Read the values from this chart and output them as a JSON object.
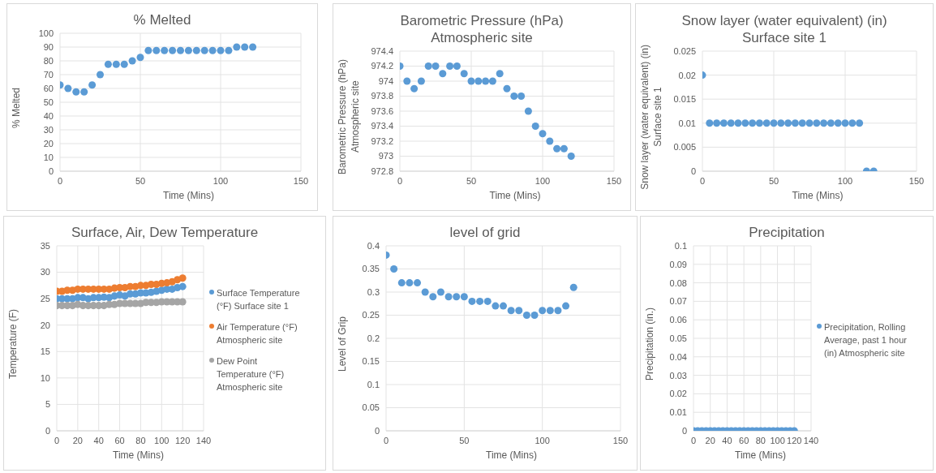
{
  "chart_data": [
    {
      "type": "scatter",
      "title": "% Melted",
      "xlabel": "Time (Mins)",
      "ylabel": "% Melted",
      "x": [
        0,
        5,
        10,
        15,
        20,
        25,
        30,
        35,
        40,
        45,
        50,
        55,
        60,
        65,
        70,
        75,
        80,
        85,
        90,
        95,
        100,
        105,
        110,
        115,
        120
      ],
      "series": [
        {
          "color": "#5b9bd5",
          "values": [
            62.5,
            60,
            57.5,
            57.5,
            62.5,
            70,
            77.5,
            77.5,
            77.5,
            80,
            82.5,
            87.5,
            87.5,
            87.5,
            87.5,
            87.5,
            87.5,
            87.5,
            87.5,
            87.5,
            87.5,
            87.5,
            90,
            90,
            90
          ]
        }
      ],
      "xlim": [
        0,
        150
      ],
      "xticks": [
        0,
        50,
        100,
        150
      ],
      "ylim": [
        0,
        100
      ],
      "yticks": [
        0,
        10,
        20,
        30,
        40,
        50,
        60,
        70,
        80,
        90,
        100
      ],
      "grid": true,
      "marker": "circle",
      "legend": false
    },
    {
      "type": "scatter",
      "title": "Barometric Pressure (hPa)\nAtmospheric site",
      "xlabel": "Time (Mins)",
      "ylabel": "Barometric Pressure (hPa)\nAtmospheric site",
      "x": [
        0,
        5,
        10,
        15,
        20,
        25,
        30,
        35,
        40,
        45,
        50,
        55,
        60,
        65,
        70,
        75,
        80,
        85,
        90,
        95,
        100,
        105,
        110,
        115,
        120
      ],
      "series": [
        {
          "color": "#5b9bd5",
          "values": [
            974.2,
            974,
            973.9,
            974,
            974.2,
            974.2,
            974.1,
            974.2,
            974.2,
            974.1,
            974,
            974,
            974,
            974,
            974.1,
            973.9,
            973.8,
            973.8,
            973.6,
            973.4,
            973.3,
            973.2,
            973.1,
            973.1,
            973
          ]
        }
      ],
      "xlim": [
        0,
        150
      ],
      "xticks": [
        0,
        50,
        100,
        150
      ],
      "ylim": [
        972.8,
        974.4
      ],
      "yticks": [
        972.8,
        973,
        973.2,
        973.4,
        973.6,
        973.8,
        974,
        974.2,
        974.4
      ],
      "grid": true,
      "marker": "circle",
      "legend": false
    },
    {
      "type": "scatter",
      "title": "Snow layer (water equivalent) (in)\nSurface site 1",
      "xlabel": "Time (Mins)",
      "ylabel": "Snow layer (water equivalent) (in)\nSurface site 1",
      "x": [
        0,
        5,
        10,
        15,
        20,
        25,
        30,
        35,
        40,
        45,
        50,
        55,
        60,
        65,
        70,
        75,
        80,
        85,
        90,
        95,
        100,
        105,
        110,
        115,
        120
      ],
      "series": [
        {
          "color": "#5b9bd5",
          "values": [
            0.02,
            0.01,
            0.01,
            0.01,
            0.01,
            0.01,
            0.01,
            0.01,
            0.01,
            0.01,
            0.01,
            0.01,
            0.01,
            0.01,
            0.01,
            0.01,
            0.01,
            0.01,
            0.01,
            0.01,
            0.01,
            0.01,
            0.01,
            0,
            0
          ]
        }
      ],
      "xlim": [
        0,
        150
      ],
      "xticks": [
        0,
        50,
        100,
        150
      ],
      "ylim": [
        0,
        0.025
      ],
      "yticks": [
        0,
        0.005,
        0.01,
        0.015,
        0.02,
        0.025
      ],
      "grid": true,
      "marker": "circle",
      "legend": false
    },
    {
      "type": "scatter",
      "title": "Surface, Air, Dew Temperature",
      "xlabel": "Time (Mins)",
      "ylabel": "Temperature (F)",
      "x": [
        0,
        5,
        10,
        15,
        20,
        25,
        30,
        35,
        40,
        45,
        50,
        55,
        60,
        65,
        70,
        75,
        80,
        85,
        90,
        95,
        100,
        105,
        110,
        115,
        120
      ],
      "series": [
        {
          "name": "Surface Temperature (°F) Surface site 1",
          "color": "#5b9bd5",
          "values": [
            25,
            25,
            25,
            25,
            25.2,
            25.2,
            25,
            25.2,
            25.2,
            25.3,
            25.2,
            25.5,
            25.7,
            25.5,
            25.9,
            25.9,
            26.1,
            26.1,
            26.2,
            26.4,
            26.6,
            26.8,
            26.8,
            27.1,
            27.3
          ]
        },
        {
          "name": "Air Temperature (°F) Atmospheric site",
          "color": "#ed7d31",
          "values": [
            26.4,
            26.4,
            26.6,
            26.6,
            26.8,
            26.8,
            26.8,
            26.8,
            26.8,
            26.8,
            26.8,
            27,
            27.1,
            27.1,
            27.3,
            27.3,
            27.5,
            27.5,
            27.7,
            27.7,
            27.9,
            28,
            28.2,
            28.6,
            28.9
          ]
        },
        {
          "name": "Dew Point Temperature (°F) Atmospheric site",
          "color": "#a5a5a5",
          "values": [
            23.7,
            23.7,
            23.7,
            23.7,
            23.9,
            23.7,
            23.7,
            23.7,
            23.7,
            23.7,
            23.9,
            23.9,
            24.1,
            24.1,
            24.1,
            24.1,
            24.1,
            24.3,
            24.3,
            24.3,
            24.4,
            24.4,
            24.4,
            24.4,
            24.4
          ]
        }
      ],
      "xlim": [
        0,
        140
      ],
      "xticks": [
        0,
        20,
        40,
        60,
        80,
        100,
        120,
        140
      ],
      "ylim": [
        0,
        35
      ],
      "yticks": [
        0,
        5,
        10,
        15,
        20,
        25,
        30,
        35
      ],
      "grid": true,
      "marker": "circle",
      "legend": "right"
    },
    {
      "type": "scatter",
      "title": "level of grid",
      "xlabel": "Time (Mins)",
      "ylabel": "Level of Grip",
      "x": [
        0,
        5,
        10,
        15,
        20,
        25,
        30,
        35,
        40,
        45,
        50,
        55,
        60,
        65,
        70,
        75,
        80,
        85,
        90,
        95,
        100,
        105,
        110,
        115,
        120
      ],
      "series": [
        {
          "color": "#5b9bd5",
          "values": [
            0.38,
            0.35,
            0.32,
            0.32,
            0.32,
            0.3,
            0.29,
            0.3,
            0.29,
            0.29,
            0.29,
            0.28,
            0.28,
            0.28,
            0.27,
            0.27,
            0.26,
            0.26,
            0.25,
            0.25,
            0.26,
            0.26,
            0.26,
            0.27,
            0.31
          ]
        }
      ],
      "xlim": [
        0,
        150
      ],
      "xticks": [
        0,
        50,
        100,
        150
      ],
      "ylim": [
        0,
        0.4
      ],
      "yticks": [
        0,
        0.05,
        0.1,
        0.15,
        0.2,
        0.25,
        0.3,
        0.35,
        0.4
      ],
      "grid": true,
      "marker": "circle",
      "legend": false
    },
    {
      "type": "scatter",
      "title": "Precipitation",
      "xlabel": "Time (Mins)",
      "ylabel": "Precipitation (in.)",
      "x": [
        0,
        5,
        10,
        15,
        20,
        25,
        30,
        35,
        40,
        45,
        50,
        55,
        60,
        65,
        70,
        75,
        80,
        85,
        90,
        95,
        100,
        105,
        110,
        115,
        120
      ],
      "series": [
        {
          "name": "Precipitation, Rolling Average, past 1 hour (in) Atmospheric site",
          "color": "#5b9bd5",
          "values": [
            0,
            0,
            0,
            0,
            0,
            0,
            0,
            0,
            0,
            0,
            0,
            0,
            0,
            0,
            0,
            0,
            0,
            0,
            0,
            0,
            0,
            0,
            0,
            0,
            0
          ]
        }
      ],
      "xlim": [
        0,
        140
      ],
      "xticks": [
        0,
        20,
        40,
        60,
        80,
        100,
        120,
        140
      ],
      "ylim": [
        0,
        0.1
      ],
      "yticks": [
        0,
        0.01,
        0.02,
        0.03,
        0.04,
        0.05,
        0.06,
        0.07,
        0.08,
        0.09,
        0.1
      ],
      "grid": true,
      "marker": "circle",
      "legend": "right"
    }
  ]
}
